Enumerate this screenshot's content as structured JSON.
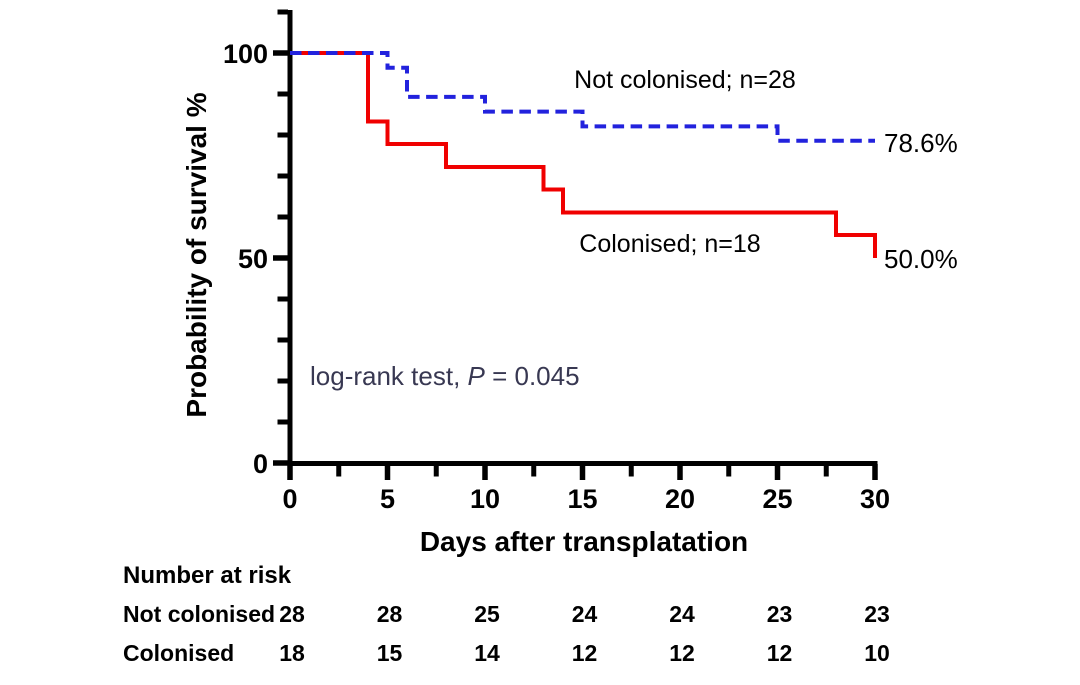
{
  "chart_data": {
    "type": "line",
    "variant": "kaplan-meier-step",
    "title": "",
    "xlabel": "Days after transplatation",
    "ylabel": "Probability of survival %",
    "xlim": [
      0,
      30
    ],
    "ylim": [
      0,
      110
    ],
    "x_major_ticks": [
      0,
      5,
      10,
      15,
      20,
      25,
      30
    ],
    "x_minor_ticks": [
      2.5,
      7.5,
      12.5,
      17.5,
      22.5,
      27.5
    ],
    "y_major_ticks": [
      0,
      50,
      100
    ],
    "y_minor_ticks": [
      10,
      20,
      30,
      40,
      60,
      70,
      80,
      90,
      110
    ],
    "grid": false,
    "axis_color": "#000000",
    "series": [
      {
        "name": "not-colonised",
        "label": "Not colonised; n=28",
        "n": 28,
        "color": "#2222dd",
        "line_style": "dashed",
        "steps": [
          [
            0,
            100
          ],
          [
            5,
            100
          ],
          [
            5,
            96.4
          ],
          [
            6,
            96.4
          ],
          [
            6,
            89.3
          ],
          [
            10,
            89.3
          ],
          [
            10,
            85.7
          ],
          [
            15,
            85.7
          ],
          [
            15,
            82.1
          ],
          [
            25,
            82.1
          ],
          [
            25,
            78.6
          ],
          [
            30,
            78.6
          ]
        ],
        "end_label": "78.6%",
        "label_pos": {
          "x": 685,
          "y": 88
        },
        "end_label_pos": {
          "x": 884,
          "y": 152
        }
      },
      {
        "name": "colonised",
        "label": "Colonised; n=18",
        "n": 18,
        "color": "#f00000",
        "line_style": "solid",
        "steps": [
          [
            0,
            100
          ],
          [
            4,
            100
          ],
          [
            4,
            83.3
          ],
          [
            5,
            83.3
          ],
          [
            5,
            77.8
          ],
          [
            8,
            77.8
          ],
          [
            8,
            72.2
          ],
          [
            13,
            72.2
          ],
          [
            13,
            66.7
          ],
          [
            14,
            66.7
          ],
          [
            14,
            61.1
          ],
          [
            28,
            61.1
          ],
          [
            28,
            55.6
          ],
          [
            30,
            55.6
          ],
          [
            30,
            50
          ]
        ],
        "end_label": "50.0%",
        "label_pos": {
          "x": 670,
          "y": 252
        },
        "end_label_pos": {
          "x": 884,
          "y": 268
        }
      }
    ],
    "annotation": {
      "text_before_p": "log-rank test, ",
      "p_symbol": "P",
      "text_after_p": " = 0.045",
      "color": "#383852",
      "pos": {
        "x": 310,
        "y": 385
      }
    },
    "risk_table": {
      "title": "Number at risk",
      "columns": [
        0,
        5,
        10,
        15,
        20,
        25,
        30
      ],
      "rows": [
        {
          "label": "Not colonised",
          "values": [
            28,
            28,
            25,
            24,
            24,
            23,
            23
          ]
        },
        {
          "label": "Colonised",
          "values": [
            18,
            15,
            14,
            12,
            12,
            12,
            10
          ]
        }
      ]
    }
  }
}
